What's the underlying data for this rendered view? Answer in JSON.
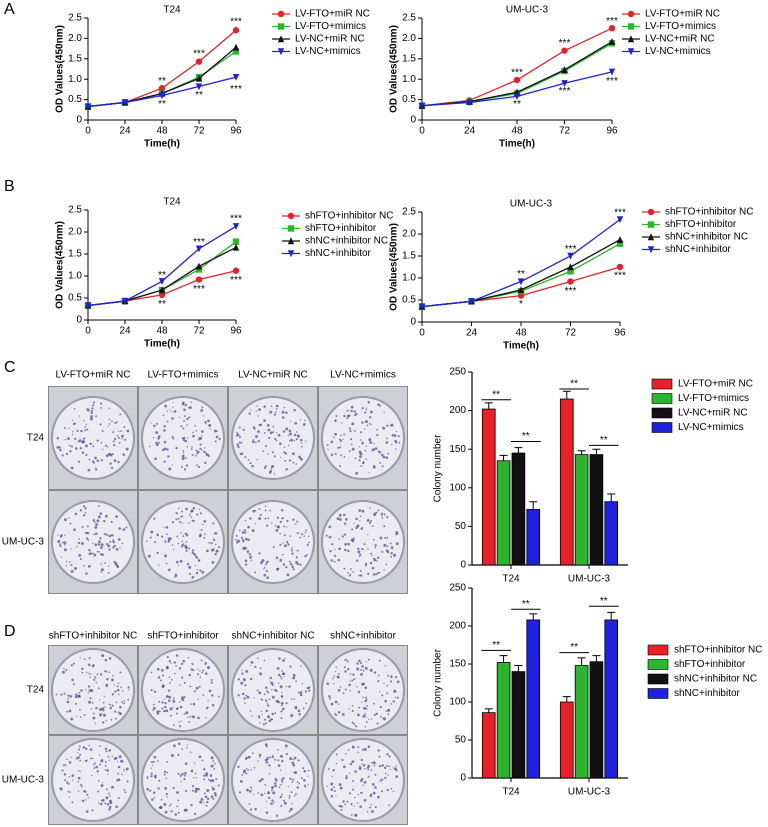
{
  "panel_labels": [
    "A",
    "B",
    "C",
    "D"
  ],
  "chart_data": [
    {
      "type": "line",
      "title": "T24",
      "xlabel": "Time(h)",
      "ylabel": "OD Values(450nm)",
      "x": [
        0,
        24,
        48,
        72,
        96
      ],
      "xlim": [
        0,
        96
      ],
      "ylim": [
        0,
        2.5
      ],
      "xticks": [
        0,
        24,
        48,
        72,
        96
      ],
      "yticks": [
        0,
        0.5,
        {
          "value": 1,
          "label": "1.0"
        },
        1.5,
        {
          "value": 2,
          "label": "2.0"
        },
        2.5
      ],
      "series": [
        {
          "name": "LV-FTO+miR NC",
          "color": "#e8202a",
          "marker": "circle",
          "values": [
            0.33,
            0.43,
            0.78,
            1.43,
            2.2
          ]
        },
        {
          "name": "LV-FTO+mimics",
          "color": "#2db52d",
          "marker": "square",
          "values": [
            0.33,
            0.43,
            0.65,
            1.05,
            1.68
          ]
        },
        {
          "name": "LV-NC+miR NC",
          "color": "#111111",
          "marker": "triangle-up",
          "values": [
            0.33,
            0.43,
            0.65,
            1.02,
            1.78
          ]
        },
        {
          "name": "LV-NC+mimics",
          "color": "#2020e0",
          "marker": "triangle-down",
          "values": [
            0.33,
            0.43,
            0.6,
            0.82,
            1.05
          ]
        }
      ],
      "annotations": [
        {
          "text": "**",
          "x": 48,
          "y": 0.95
        },
        {
          "text": "**",
          "x": 48,
          "y": 0.38
        },
        {
          "text": "***",
          "x": 72,
          "y": 1.62
        },
        {
          "text": "**",
          "x": 72,
          "y": 0.6
        },
        {
          "text": "***",
          "x": 96,
          "y": 2.4
        },
        {
          "text": "***",
          "x": 96,
          "y": 0.75
        }
      ]
    },
    {
      "type": "line",
      "title": "UM-UC-3",
      "xlabel": "Time(h)",
      "ylabel": "OD Values(450nm)",
      "x": [
        0,
        24,
        48,
        72,
        96
      ],
      "xlim": [
        0,
        96
      ],
      "ylim": [
        0,
        2.5
      ],
      "xticks": [
        0,
        24,
        48,
        72,
        96
      ],
      "yticks": [
        0,
        0.5,
        {
          "value": 1,
          "label": "1.0"
        },
        1.5,
        {
          "value": 2,
          "label": "2.0"
        },
        2.5
      ],
      "series": [
        {
          "name": "LV-FTO+miR NC",
          "color": "#e8202a",
          "marker": "circle",
          "values": [
            0.35,
            0.48,
            0.98,
            1.7,
            2.25
          ]
        },
        {
          "name": "LV-FTO+mimics",
          "color": "#2db52d",
          "marker": "square",
          "values": [
            0.35,
            0.45,
            0.65,
            1.2,
            1.88
          ]
        },
        {
          "name": "LV-NC+miR NC",
          "color": "#111111",
          "marker": "triangle-up",
          "values": [
            0.35,
            0.45,
            0.68,
            1.23,
            1.92
          ]
        },
        {
          "name": "LV-NC+mimics",
          "color": "#2020e0",
          "marker": "triangle-down",
          "values": [
            0.35,
            0.43,
            0.58,
            0.9,
            1.18
          ]
        }
      ],
      "annotations": [
        {
          "text": "***",
          "x": 48,
          "y": 1.15
        },
        {
          "text": "**",
          "x": 48,
          "y": 0.38
        },
        {
          "text": "***",
          "x": 72,
          "y": 1.88
        },
        {
          "text": "***",
          "x": 72,
          "y": 0.7
        },
        {
          "text": "***",
          "x": 96,
          "y": 2.42
        },
        {
          "text": "***",
          "x": 96,
          "y": 0.95
        }
      ]
    },
    {
      "type": "line",
      "title": "T24",
      "xlabel": "Time(h)",
      "ylabel": "OD Values(450nm)",
      "x": [
        0,
        24,
        48,
        72,
        96
      ],
      "xlim": [
        0,
        96
      ],
      "ylim": [
        0,
        2.5
      ],
      "xticks": [
        0,
        24,
        48,
        72,
        96
      ],
      "yticks": [
        0,
        0.5,
        {
          "value": 1,
          "label": "1.0"
        },
        1.5,
        {
          "value": 2,
          "label": "2.0"
        },
        2.5
      ],
      "series": [
        {
          "name": "shFTO+inhibitor NC",
          "color": "#e8202a",
          "marker": "circle",
          "values": [
            0.33,
            0.43,
            0.57,
            0.92,
            1.12
          ]
        },
        {
          "name": "shFTO+inhibitor",
          "color": "#2db52d",
          "marker": "square",
          "values": [
            0.33,
            0.43,
            0.68,
            1.15,
            1.78
          ]
        },
        {
          "name": "shNC+inhibitor NC",
          "color": "#111111",
          "marker": "triangle-up",
          "values": [
            0.33,
            0.43,
            0.68,
            1.22,
            1.65
          ]
        },
        {
          "name": "shNC+inhibitor",
          "color": "#2020e0",
          "marker": "triangle-down",
          "values": [
            0.33,
            0.43,
            0.88,
            1.62,
            2.13
          ]
        }
      ],
      "annotations": [
        {
          "text": "**",
          "x": 48,
          "y": 1.02
        },
        {
          "text": "**",
          "x": 48,
          "y": 0.36
        },
        {
          "text": "***",
          "x": 72,
          "y": 1.77
        },
        {
          "text": "***",
          "x": 72,
          "y": 0.7
        },
        {
          "text": "***",
          "x": 96,
          "y": 2.3
        },
        {
          "text": "***",
          "x": 96,
          "y": 0.9
        }
      ]
    },
    {
      "type": "line",
      "title": "UM-UC-3",
      "xlabel": "Time(h)",
      "ylabel": "OD Values(450nm)",
      "x": [
        0,
        24,
        48,
        72,
        96
      ],
      "xlim": [
        0,
        96
      ],
      "ylim": [
        0,
        2.5
      ],
      "xticks": [
        0,
        24,
        48,
        72,
        96
      ],
      "yticks": [
        0,
        0.5,
        {
          "value": 1,
          "label": "1.0"
        },
        1.5,
        {
          "value": 2,
          "label": "2.0"
        },
        2.5
      ],
      "series": [
        {
          "name": "shFTO+inhibitor NC",
          "color": "#e8202a",
          "marker": "circle",
          "values": [
            0.35,
            0.47,
            0.6,
            0.92,
            1.25
          ]
        },
        {
          "name": "shFTO+inhibitor",
          "color": "#2db52d",
          "marker": "square",
          "values": [
            0.35,
            0.47,
            0.7,
            1.15,
            1.78
          ]
        },
        {
          "name": "shNC+inhibitor NC",
          "color": "#111111",
          "marker": "triangle-up",
          "values": [
            0.35,
            0.47,
            0.73,
            1.25,
            1.87
          ]
        },
        {
          "name": "shNC+inhibitor",
          "color": "#2020e0",
          "marker": "triangle-down",
          "values": [
            0.35,
            0.47,
            0.92,
            1.5,
            2.33
          ]
        }
      ],
      "annotations": [
        {
          "text": "**",
          "x": 48,
          "y": 1.08
        },
        {
          "text": "*",
          "x": 48,
          "y": 0.4
        },
        {
          "text": "***",
          "x": 72,
          "y": 1.65
        },
        {
          "text": "***",
          "x": 72,
          "y": 0.7
        },
        {
          "text": "***",
          "x": 96,
          "y": 2.48
        },
        {
          "text": "***",
          "x": 96,
          "y": 1.05
        }
      ]
    },
    {
      "type": "bar",
      "ylabel": "Colony number",
      "categories": [
        "T24",
        "UM-UC-3"
      ],
      "ylim": [
        0,
        250
      ],
      "yticks": [
        0,
        50,
        100,
        150,
        200,
        250
      ],
      "series": [
        {
          "name": "LV-FTO+miR NC",
          "color": "#e8202a",
          "values": [
            202,
            215
          ],
          "errors": [
            8,
            10
          ]
        },
        {
          "name": "LV-FTO+mimics",
          "color": "#2db52d",
          "values": [
            135,
            143
          ],
          "errors": [
            7,
            5
          ]
        },
        {
          "name": "LV-NC+miR NC",
          "color": "#111111",
          "values": [
            145,
            143
          ],
          "errors": [
            7,
            7
          ]
        },
        {
          "name": "LV-NC+mimics",
          "color": "#2020e0",
          "values": [
            72,
            82
          ],
          "errors": [
            10,
            10
          ]
        }
      ],
      "annotations": [
        {
          "text": "**",
          "category": 0,
          "from": 0,
          "to": 1,
          "y": 214
        },
        {
          "text": "**",
          "category": 0,
          "from": 2,
          "to": 3,
          "y": 160
        },
        {
          "text": "**",
          "category": 1,
          "from": 0,
          "to": 1,
          "y": 228
        },
        {
          "text": "**",
          "category": 1,
          "from": 2,
          "to": 3,
          "y": 155
        }
      ]
    },
    {
      "type": "bar",
      "ylabel": "Colony number",
      "categories": [
        "T24",
        "UM-UC-3"
      ],
      "ylim": [
        0,
        250
      ],
      "yticks": [
        0,
        50,
        100,
        150,
        200,
        250
      ],
      "series": [
        {
          "name": "shFTO+inhibitor NC",
          "color": "#e8202a",
          "values": [
            86,
            100
          ],
          "errors": [
            5,
            7
          ]
        },
        {
          "name": "shFTO+inhibitor",
          "color": "#2db52d",
          "values": [
            152,
            148
          ],
          "errors": [
            9,
            10
          ]
        },
        {
          "name": "shNC+inhibitor NC",
          "color": "#111111",
          "values": [
            140,
            153
          ],
          "errors": [
            8,
            8
          ]
        },
        {
          "name": "shNC+inhibitor",
          "color": "#2020e0",
          "values": [
            208,
            208
          ],
          "errors": [
            8,
            10
          ]
        }
      ],
      "annotations": [
        {
          "text": "**",
          "category": 0,
          "from": 0,
          "to": 1,
          "y": 168
        },
        {
          "text": "**",
          "category": 0,
          "from": 2,
          "to": 3,
          "y": 222
        },
        {
          "text": "**",
          "category": 1,
          "from": 0,
          "to": 1,
          "y": 165
        },
        {
          "text": "**",
          "category": 1,
          "from": 2,
          "to": 3,
          "y": 226
        }
      ]
    }
  ],
  "plate_grids": [
    {
      "column_labels": [
        "LV-FTO+miR NC",
        "LV-FTO+mimics",
        "LV-NC+miR NC",
        "LV-NC+mimics"
      ],
      "row_labels": [
        "T24",
        "UM-UC-3"
      ]
    },
    {
      "column_labels": [
        "shFTO+inhibitor NC",
        "shFTO+inhibitor",
        "shNC+inhibitor NC",
        "shNC+inhibitor"
      ],
      "row_labels": [
        "T24",
        "UM-UC-3"
      ]
    }
  ]
}
